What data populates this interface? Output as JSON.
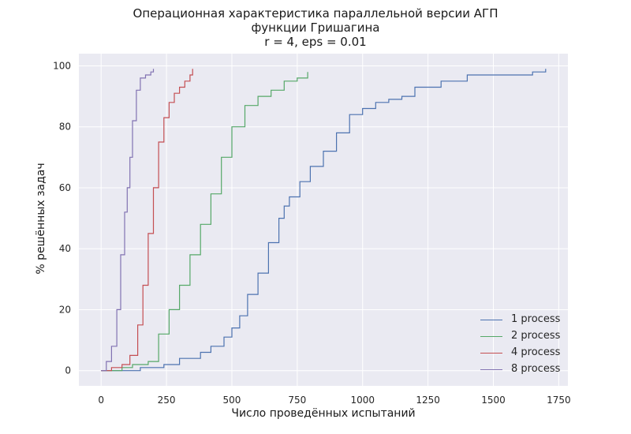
{
  "chart_data": {
    "type": "line",
    "title": [
      "Операционная характеристика параллельной версии АГП",
      "функции Гришагина",
      "r = 4, eps = 0.01"
    ],
    "xlabel": "Число проведённых испытаний",
    "ylabel": "% решённых задач",
    "xlim": [
      -85,
      1785
    ],
    "ylim": [
      -5,
      104
    ],
    "xticks": [
      0,
      250,
      500,
      750,
      1000,
      1250,
      1500,
      1750
    ],
    "yticks": [
      0,
      20,
      40,
      60,
      80,
      100
    ],
    "grid": true,
    "legend_position": "lower-right",
    "series": [
      {
        "name": "1 process",
        "color": "#4c72b0",
        "x": [
          0,
          150,
          240,
          300,
          380,
          420,
          470,
          500,
          530,
          560,
          600,
          640,
          680,
          700,
          720,
          760,
          800,
          850,
          900,
          950,
          1000,
          1050,
          1100,
          1150,
          1200,
          1300,
          1400,
          1500,
          1600,
          1650,
          1700
        ],
        "y": [
          0,
          1,
          2,
          4,
          6,
          8,
          11,
          14,
          18,
          25,
          32,
          42,
          50,
          54,
          57,
          62,
          67,
          72,
          78,
          84,
          86,
          88,
          89,
          90,
          93,
          95,
          97,
          97,
          97,
          98,
          99
        ]
      },
      {
        "name": "2 process",
        "color": "#55a868",
        "x": [
          0,
          80,
          120,
          180,
          220,
          260,
          300,
          340,
          380,
          420,
          460,
          500,
          550,
          600,
          650,
          700,
          750,
          790
        ],
        "y": [
          0,
          1,
          2,
          3,
          12,
          20,
          28,
          38,
          48,
          58,
          70,
          80,
          87,
          90,
          92,
          95,
          96,
          98
        ]
      },
      {
        "name": "4 process",
        "color": "#c44e52",
        "x": [
          0,
          40,
          80,
          110,
          140,
          160,
          180,
          200,
          220,
          240,
          260,
          280,
          300,
          320,
          340,
          350
        ],
        "y": [
          0,
          1,
          2,
          5,
          15,
          28,
          45,
          60,
          75,
          83,
          88,
          91,
          93,
          95,
          97,
          99
        ]
      },
      {
        "name": "8 process",
        "color": "#8172b2",
        "x": [
          0,
          20,
          40,
          60,
          75,
          90,
          100,
          110,
          120,
          135,
          150,
          170,
          190,
          200
        ],
        "y": [
          0,
          3,
          8,
          20,
          38,
          52,
          60,
          70,
          82,
          92,
          96,
          97,
          98,
          99
        ]
      }
    ]
  }
}
